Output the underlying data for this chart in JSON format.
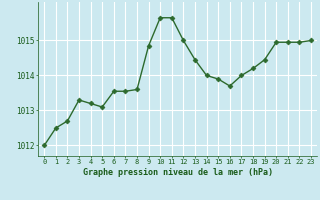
{
  "x": [
    0,
    1,
    2,
    3,
    4,
    5,
    6,
    7,
    8,
    9,
    10,
    11,
    12,
    13,
    14,
    15,
    16,
    17,
    18,
    19,
    20,
    21,
    22,
    23
  ],
  "y": [
    1012.0,
    1012.5,
    1012.7,
    1013.3,
    1013.2,
    1013.1,
    1013.55,
    1013.55,
    1013.6,
    1014.85,
    1015.65,
    1015.65,
    1015.0,
    1014.45,
    1014.0,
    1013.9,
    1013.7,
    1014.0,
    1014.2,
    1014.45,
    1014.95,
    1014.95,
    1014.95,
    1015.0
  ],
  "line_color": "#2d6a2d",
  "marker": "D",
  "marker_size": 2.5,
  "bg_color": "#cce9f0",
  "grid_color": "#ffffff",
  "xlabel": "Graphe pression niveau de la mer (hPa)",
  "xlabel_color": "#1a5c1a",
  "tick_color": "#1a5c1a",
  "ylim": [
    1011.7,
    1016.1
  ],
  "yticks": [
    1012,
    1013,
    1014,
    1015
  ],
  "xticks": [
    0,
    1,
    2,
    3,
    4,
    5,
    6,
    7,
    8,
    9,
    10,
    11,
    12,
    13,
    14,
    15,
    16,
    17,
    18,
    19,
    20,
    21,
    22,
    23
  ],
  "line_width": 1.0
}
